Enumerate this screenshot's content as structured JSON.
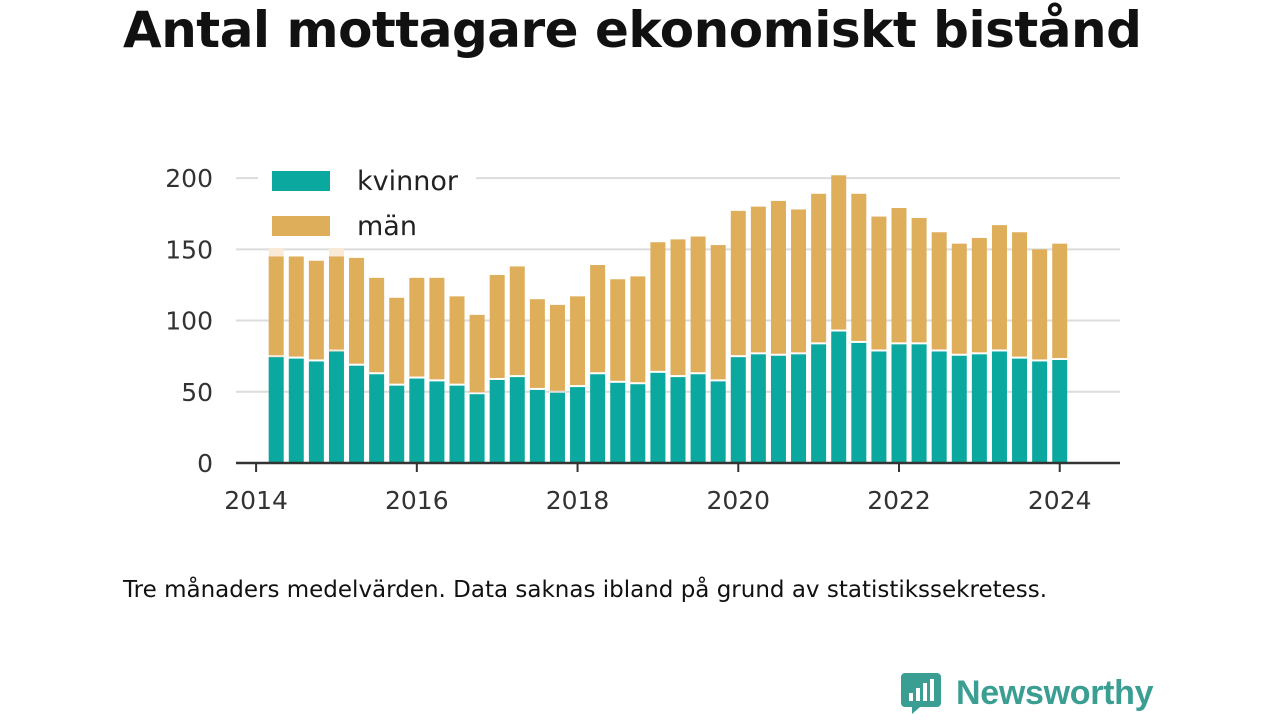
{
  "chart_data": {
    "type": "bar",
    "stacked": true,
    "title": "Antal mottagare ekonomiskt bistånd",
    "note": "Tre månaders medelvärden. Data saknas ibland på grund av statistikssekretess.",
    "x_ticks": [
      "2014",
      "2016",
      "2018",
      "2020",
      "2022",
      "2024"
    ],
    "y_ticks": [
      "0",
      "50",
      "100",
      "150",
      "200"
    ],
    "ylim": [
      0,
      205
    ],
    "xlim": [
      2013.75,
      2024.75
    ],
    "grid": true,
    "legend_position": "top-left",
    "x": [
      2014.25,
      2014.5,
      2014.75,
      2015.0,
      2015.25,
      2015.5,
      2015.75,
      2016.0,
      2016.25,
      2016.5,
      2016.75,
      2017.0,
      2017.25,
      2017.5,
      2017.75,
      2018.0,
      2018.25,
      2018.5,
      2018.75,
      2019.0,
      2019.25,
      2019.5,
      2019.75,
      2020.0,
      2020.25,
      2020.5,
      2020.75,
      2021.0,
      2021.25,
      2021.5,
      2021.75,
      2022.0,
      2022.25,
      2022.5,
      2022.75,
      2023.0,
      2023.25,
      2023.5,
      2023.75,
      2024.0
    ],
    "series": [
      {
        "name": "kvinnor",
        "color": "#0aa89e",
        "values": [
          75,
          74,
          72,
          79,
          69,
          63,
          55,
          60,
          58,
          55,
          49,
          59,
          61,
          52,
          50,
          54,
          63,
          57,
          56,
          64,
          61,
          63,
          58,
          75,
          77,
          76,
          77,
          84,
          93,
          85,
          79,
          84,
          84,
          79,
          76,
          77,
          79,
          74,
          72,
          73
        ]
      },
      {
        "name": "män",
        "color": "#deae5b",
        "values": [
          70,
          71,
          70,
          66,
          75,
          67,
          61,
          70,
          72,
          62,
          55,
          73,
          77,
          63,
          61,
          63,
          76,
          72,
          75,
          91,
          96,
          96,
          95,
          102,
          103,
          108,
          101,
          105,
          109,
          104,
          94,
          95,
          88,
          83,
          78,
          81,
          88,
          88,
          78,
          81
        ]
      }
    ],
    "faded_ghost": [
      {
        "x": 2014.25,
        "top": 157
      },
      {
        "x": 2015.0,
        "top": 157
      }
    ]
  },
  "brand": {
    "name": "Newsworthy",
    "icon": "bar-chart-speech-bubble-icon",
    "color": "#3a9e93"
  }
}
